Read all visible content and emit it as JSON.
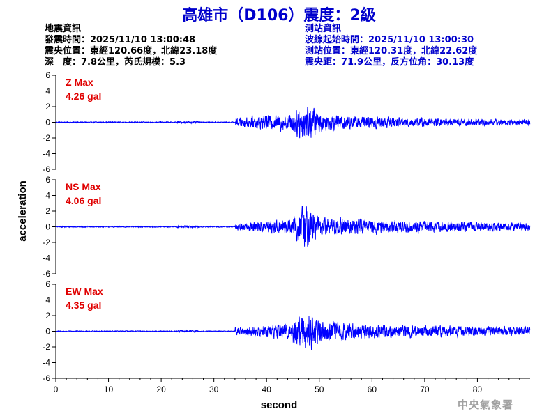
{
  "title": "高雄市（D106）震度：2級",
  "quake_info": {
    "header": "地震資訊",
    "origin_time": "發震時間：2025/11/10 13:00:48",
    "epicenter": "震央位置：東經120.66度，北緯23.18度",
    "depth_magnitude": "深　度：7.8公里，芮氏規模：5.3"
  },
  "station_info": {
    "header": "測站資訊",
    "wave_start": "波線起始時間：2025/11/10 13:00:30",
    "location": "測站位置：東經120.31度，北緯22.62度",
    "distance": "震央距：71.9公里，反方位角：30.13度"
  },
  "watermark": "中央氣象署",
  "colors": {
    "title": "#0000cc",
    "trace": "#0000ff",
    "peak_label": "#e00000",
    "axis": "#000000",
    "watermark": "#a0a0a0"
  },
  "chart_data": {
    "type": "line",
    "xlabel": "second",
    "ylabel": "acceleration",
    "xlim": [
      0,
      90
    ],
    "ylim": [
      -6,
      6
    ],
    "x_ticks": [
      0,
      10,
      20,
      30,
      40,
      50,
      60,
      70,
      80
    ],
    "y_ticks": [
      6,
      4,
      2,
      0,
      -2,
      -4,
      -6
    ],
    "grid": false,
    "p_arrival_s": 34,
    "s_arrival_s": 47,
    "series": [
      {
        "name": "Z Max",
        "peak": "4.26 gal",
        "peak_value": 4.26,
        "pre_noise": 0.09,
        "p_amp": 0.7,
        "s_amp": 3.3,
        "coda_amp": 0.4
      },
      {
        "name": "NS Max",
        "peak": "4.06 gal",
        "peak_value": 4.06,
        "pre_noise": 0.09,
        "p_amp": 0.6,
        "s_amp": 3.6,
        "coda_amp": 0.6
      },
      {
        "name": "EW Max",
        "peak": "4.35 gal",
        "peak_value": 4.35,
        "pre_noise": 0.08,
        "p_amp": 0.6,
        "s_amp": 3.8,
        "coda_amp": 0.6
      }
    ]
  }
}
